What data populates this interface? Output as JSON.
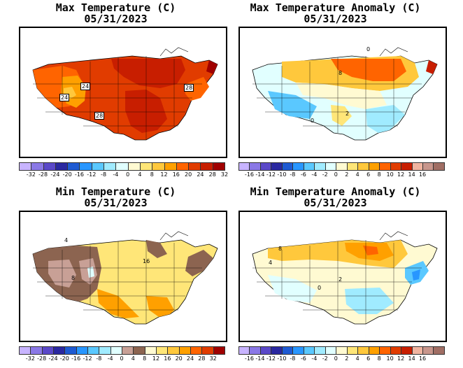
{
  "panels": [
    {
      "id": "max-temp",
      "title_line1": "Max Temperature (C)",
      "title_line2": "05/31/2023",
      "labels": [
        "24",
        "24",
        "28",
        "28"
      ],
      "colorbar": {
        "colors": [
          "#c8b4ff",
          "#8a78e6",
          "#5a48c8",
          "#2a28a0",
          "#1e5ad2",
          "#2896ff",
          "#5ac8ff",
          "#a0ebff",
          "#e1ffff",
          "#fffad2",
          "#ffe678",
          "#ffc83c",
          "#ffa000",
          "#ff6400",
          "#e13c00",
          "#c81e00",
          "#a00000"
        ],
        "tick_labels": [
          "-32",
          "-28",
          "-24",
          "-20",
          "-16",
          "-12",
          "-8",
          "-4",
          "0",
          "4",
          "8",
          "12",
          "16",
          "20",
          "24",
          "28",
          "32"
        ]
      }
    },
    {
      "id": "max-temp-anomaly",
      "title_line1": "Max Temperature Anomaly (C)",
      "title_line2": "05/31/2023",
      "labels": [
        "0",
        "8",
        "2",
        "0"
      ],
      "colorbar": {
        "colors": [
          "#c8b4ff",
          "#8a78e6",
          "#5a48c8",
          "#2a28a0",
          "#1e5ad2",
          "#2896ff",
          "#5ac8ff",
          "#a0ebff",
          "#e1ffff",
          "#fffad2",
          "#ffe678",
          "#ffc83c",
          "#ffa000",
          "#ff6400",
          "#e13c00",
          "#c81e00",
          "#f0b4a0",
          "#c8968c",
          "#a06e64"
        ],
        "tick_labels": [
          "-16",
          "-14",
          "-12",
          "-10",
          "-8",
          "-6",
          "-4",
          "-2",
          "0",
          "2",
          "4",
          "6",
          "8",
          "10",
          "12",
          "14",
          "16"
        ]
      }
    },
    {
      "id": "min-temp",
      "title_line1": "Min Temperature (C)",
      "title_line2": "05/31/2023",
      "labels": [
        "4",
        "8",
        "16"
      ],
      "colorbar": {
        "colors": [
          "#c8b4ff",
          "#8a78e6",
          "#5a48c8",
          "#2a28a0",
          "#1e5ad2",
          "#2896ff",
          "#5ac8ff",
          "#a0ebff",
          "#e1ffff",
          "#c8a096",
          "#8c6450",
          "#fffad2",
          "#ffe678",
          "#ffc83c",
          "#ffa000",
          "#ff6400",
          "#e13c00",
          "#a00000"
        ],
        "tick_labels": [
          "-32",
          "-28",
          "-24",
          "-20",
          "-16",
          "-12",
          "-8",
          "-4",
          "0",
          "4",
          "8",
          "12",
          "16",
          "20",
          "24",
          "28",
          "32"
        ]
      }
    },
    {
      "id": "min-temp-anomaly",
      "title_line1": "Min Temperature Anomaly (C)",
      "title_line2": "05/31/2023",
      "labels": [
        "8",
        "2",
        "0",
        "4"
      ],
      "colorbar": {
        "colors": [
          "#c8b4ff",
          "#8a78e6",
          "#5a48c8",
          "#2a28a0",
          "#1e5ad2",
          "#2896ff",
          "#5ac8ff",
          "#a0ebff",
          "#e1ffff",
          "#fffad2",
          "#ffe678",
          "#ffc83c",
          "#ffa000",
          "#ff6400",
          "#e13c00",
          "#c81e00",
          "#f0b4a0",
          "#c8968c",
          "#a06e64"
        ],
        "tick_labels": [
          "-16",
          "-14",
          "-12",
          "-10",
          "-8",
          "-6",
          "-4",
          "-2",
          "0",
          "2",
          "4",
          "6",
          "8",
          "10",
          "12",
          "14",
          "16"
        ]
      }
    }
  ]
}
